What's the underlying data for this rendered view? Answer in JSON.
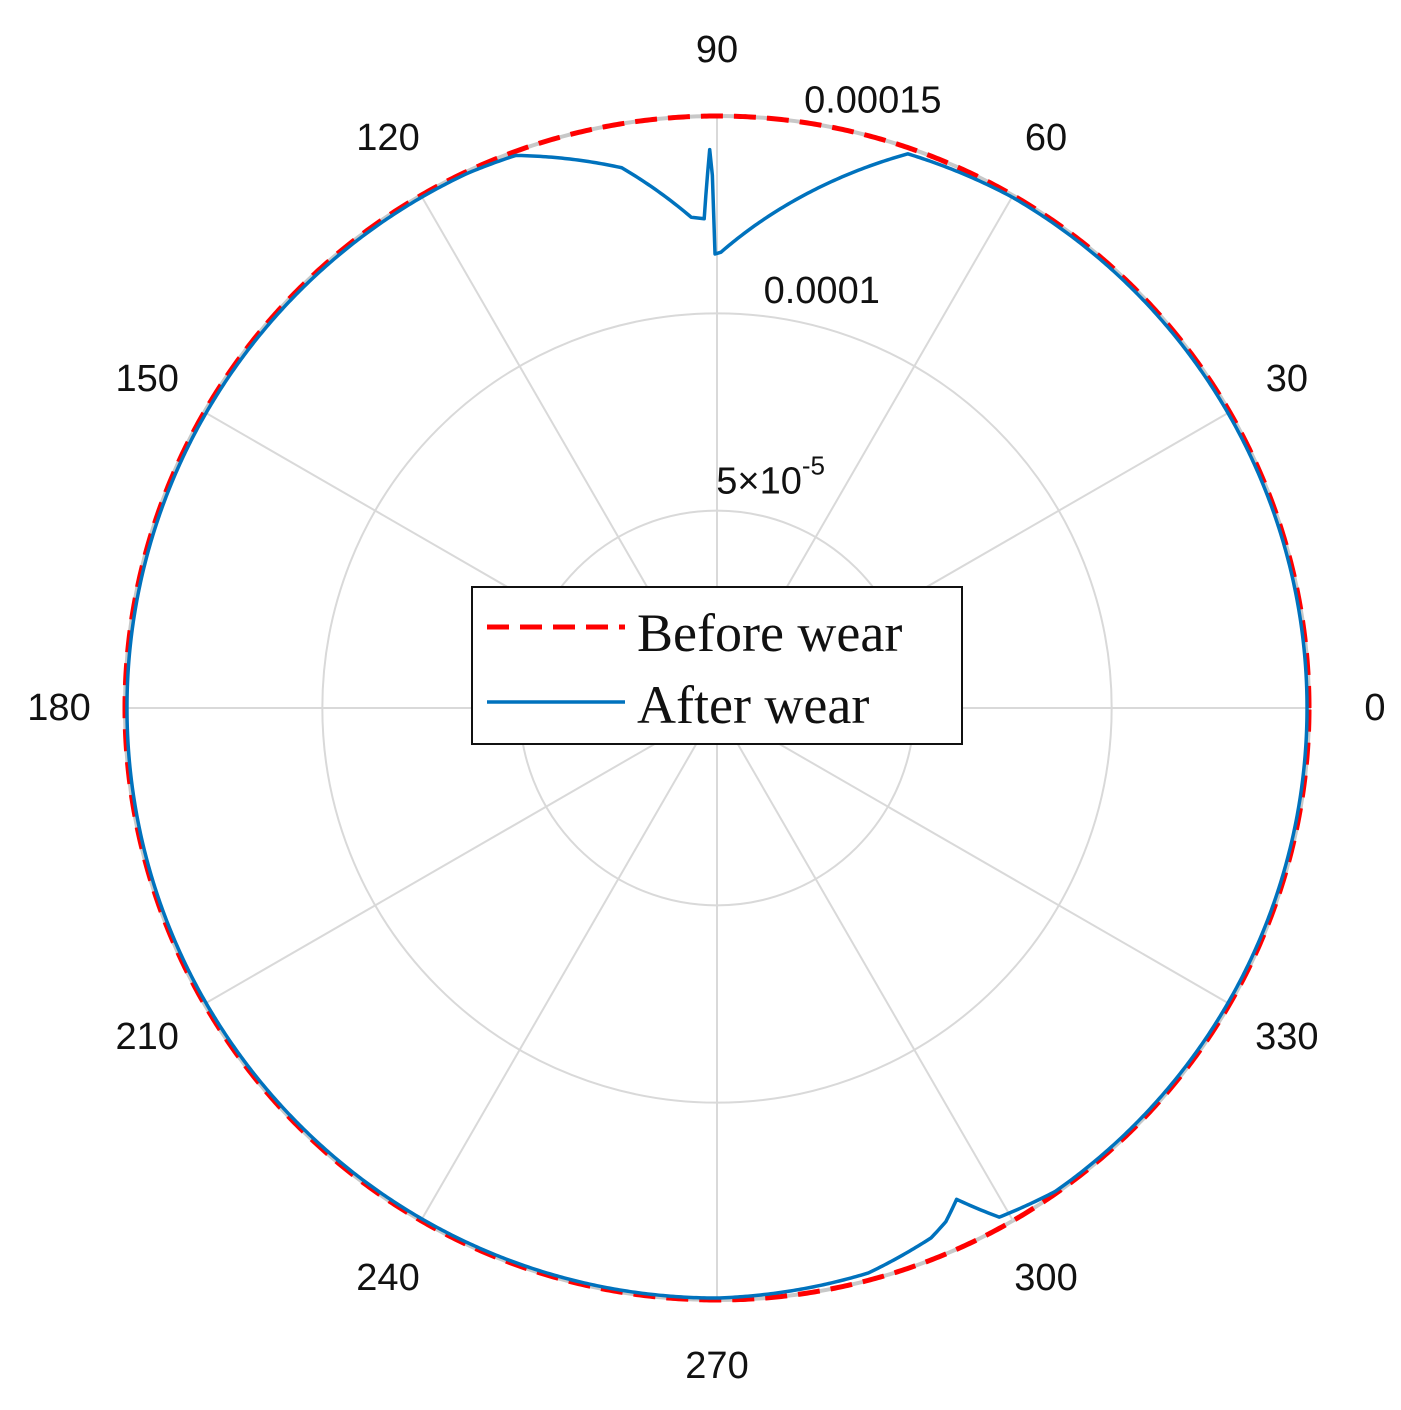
{
  "chart_data": {
    "type": "polar-line",
    "angle_unit": "degrees",
    "theta_ticks": [
      "0",
      "30",
      "60",
      "90",
      "120",
      "150",
      "180",
      "210",
      "240",
      "270",
      "300",
      "330"
    ],
    "r_ticks": [
      {
        "value": 5e-05,
        "label_base": "5×10",
        "label_exp": "-5"
      },
      {
        "value": 0.0001,
        "label": "0.0001"
      },
      {
        "value": 0.00015,
        "label": "0.00015"
      }
    ],
    "rlim": [
      0,
      0.00015
    ],
    "r_tick_label_angle": 75,
    "grid": true,
    "legend_position": "center",
    "colors": {
      "before": "#ff0000",
      "after": "#0072bd",
      "grid": "#d9d9d9",
      "outer_ring": "#c8c8c8"
    },
    "series": [
      {
        "name": "Before wear",
        "style": "dashed",
        "theta": [
          0,
          90,
          180,
          270,
          360
        ],
        "r": [
          0.00015,
          0.00015,
          0.00015,
          0.00015,
          0.00015
        ]
      },
      {
        "name": "After wear",
        "style": "solid",
        "theta": [
          0,
          60,
          71,
          89.5,
          90.3,
          90.6,
          91.5,
          93,
          100,
          106,
          110,
          115,
          120,
          150,
          180,
          270,
          285,
          292,
          294,
          296,
          299,
          305,
          360
        ],
        "r": [
          0.0001495,
          0.0001495,
          0.0001485,
          0.0001155,
          0.000115,
          0.000145,
          0.000124,
          0.0001245,
          0.000139,
          0.000145,
          0.000149,
          0.0001495,
          0.0001495,
          0.0001495,
          0.0001495,
          0.0001495,
          0.0001482,
          0.0001448,
          0.0001425,
          0.0001385,
          0.0001475,
          0.0001495,
          0.0001495
        ]
      }
    ]
  }
}
